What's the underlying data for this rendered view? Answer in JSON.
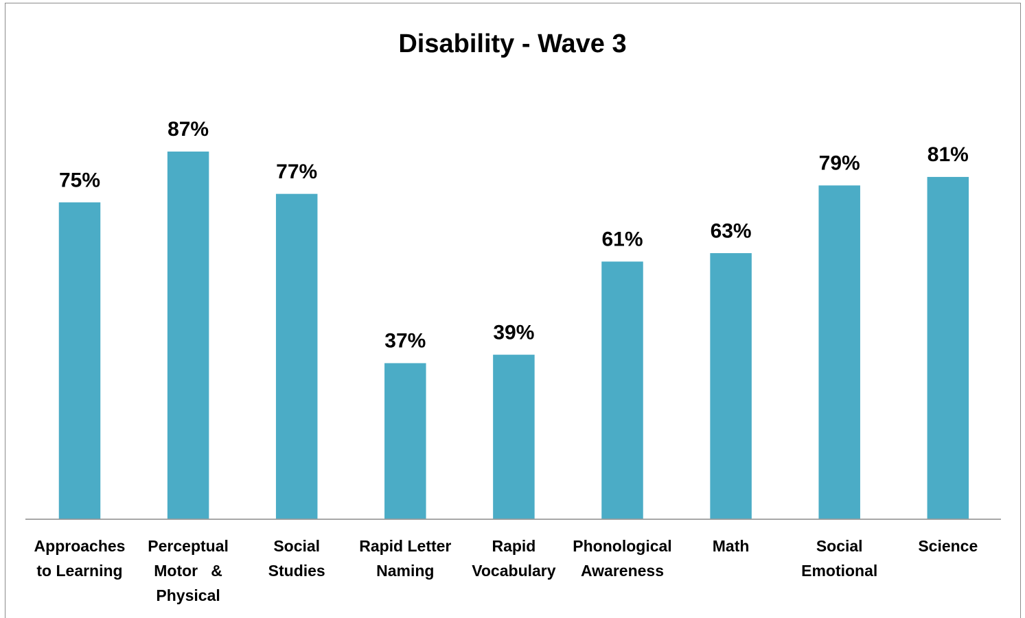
{
  "chart_data": {
    "type": "bar",
    "title": "Disability - Wave 3",
    "xlabel": "",
    "ylabel": "",
    "categories": [
      [
        "Approaches",
        "to Learning"
      ],
      [
        "Perceptual",
        "Motor   &",
        "Physical"
      ],
      [
        "Social",
        "Studies"
      ],
      [
        "Rapid Letter",
        "Naming"
      ],
      [
        "Rapid",
        "Vocabulary"
      ],
      [
        "Phonological",
        "Awareness"
      ],
      [
        "Math"
      ],
      [
        "Social",
        "Emotional"
      ],
      [
        "Science"
      ]
    ],
    "values": [
      75,
      87,
      77,
      37,
      39,
      61,
      63,
      79,
      81
    ],
    "data_labels": [
      "75%",
      "87%",
      "77%",
      "37%",
      "39%",
      "61%",
      "63%",
      "79%",
      "81%"
    ],
    "ylim": [
      0,
      100
    ],
    "grid": false,
    "legend": "none",
    "bar_color": "#4bacc6",
    "axis_color": "#8a8a8a"
  }
}
